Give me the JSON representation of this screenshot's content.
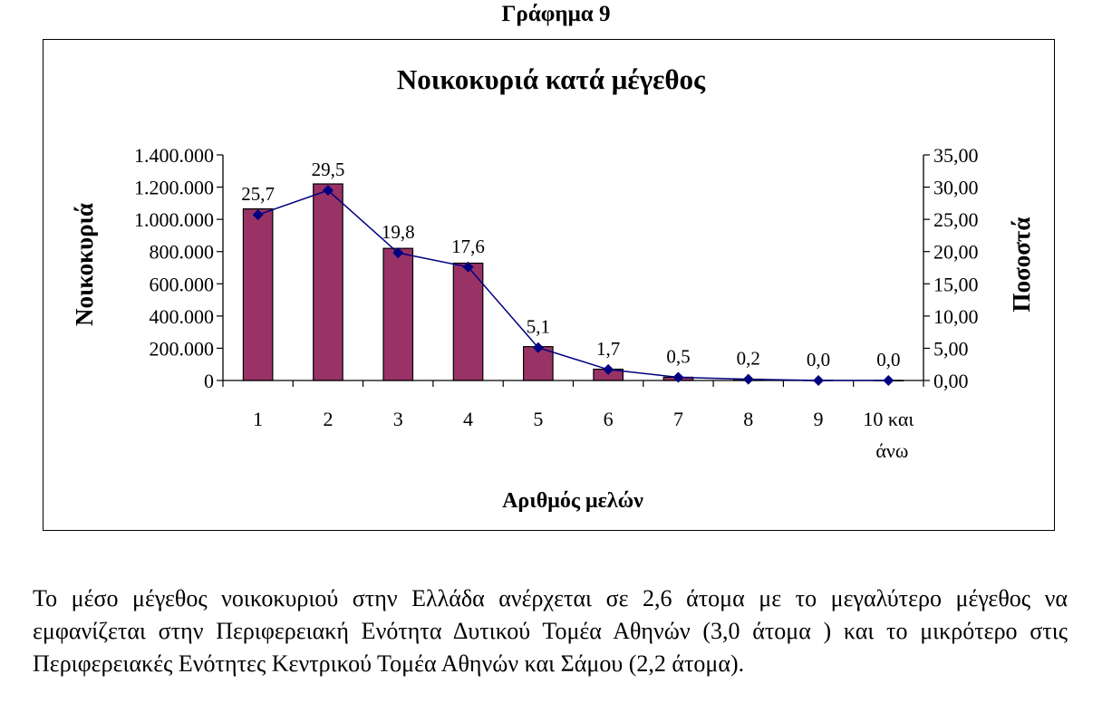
{
  "page_heading": "Γράφημα 9",
  "paragraph": "Το μέσο μέγεθος νοικοκυριού στην Ελλάδα ανέρχεται σε 2,6 άτομα  με το μεγαλύτερο μέγεθος να εμφανίζεται στην Περιφερειακή  Ενότητα Δυτικού Τομέα Αθηνών (3,0 άτομα ) και το μικρότερο στις Περιφερειακές  Ενότητες Κεντρικού Τομέα Αθηνών και Σάμου (2,2 άτομα).",
  "chart_data": {
    "type": "bar",
    "title": "Νοικοκυριά κατά μέγεθος",
    "xlabel": "Αριθμός μελών",
    "ylabel": "Νοικοκυριά",
    "y2label": "Ποσοστά",
    "categories": [
      "1",
      "2",
      "3",
      "4",
      "5",
      "6",
      "7",
      "8",
      "9",
      "10 και άνω"
    ],
    "ylim": [
      0,
      1400000
    ],
    "y2lim": [
      0,
      35
    ],
    "yticks": [
      "0",
      "200.000",
      "400.000",
      "600.000",
      "800.000",
      "1.000.000",
      "1.200.000",
      "1.400.000"
    ],
    "y2ticks": [
      "0,00",
      "5,00",
      "10,00",
      "15,00",
      "20,00",
      "25,00",
      "30,00",
      "35,00"
    ],
    "legend": "none",
    "grid": false,
    "series": [
      {
        "type": "bar",
        "axis": "left",
        "color": "#993366",
        "values": [
          1065000,
          1220000,
          820000,
          728000,
          210000,
          70000,
          20000,
          8000,
          1500,
          500
        ]
      },
      {
        "type": "line",
        "axis": "right",
        "color": "#000080",
        "marker": "diamond",
        "values": [
          25.7,
          29.5,
          19.8,
          17.6,
          5.1,
          1.7,
          0.5,
          0.2,
          0.0,
          0.0
        ],
        "labels": [
          "25,7",
          "29,5",
          "19,8",
          "17,6",
          "5,1",
          "1,7",
          "0,5",
          "0,2",
          "0,0",
          "0,0"
        ]
      }
    ]
  }
}
